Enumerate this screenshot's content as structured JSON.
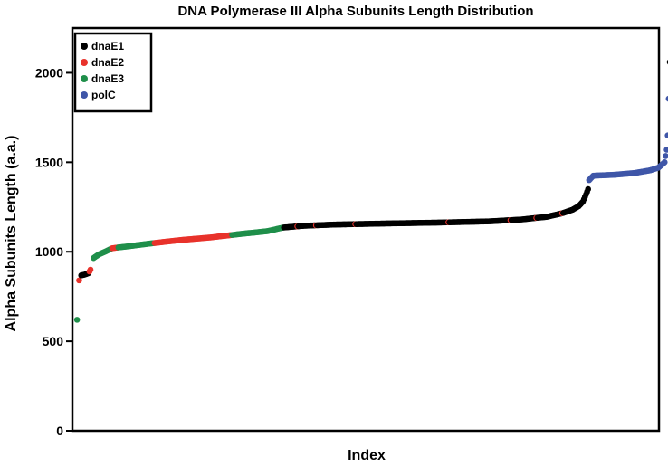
{
  "chart_data": {
    "type": "scatter",
    "title": "DNA Polymerase III Alpha Subunits Length Distribution",
    "xlabel": "Index",
    "ylabel": "Alpha Subunits Length (a.a.)",
    "ylim": [
      0,
      2250
    ],
    "yticks": [
      0,
      500,
      1000,
      1500,
      2000
    ],
    "xlim": [
      0,
      560
    ],
    "grid": false,
    "legend_position": "top-left",
    "colors": {
      "dnaE1": "#000000",
      "dnaE2": "#e8322b",
      "dnaE3": "#1f8f4a",
      "polC": "#3f56a8"
    },
    "legend": [
      "dnaE1",
      "dnaE2",
      "dnaE3",
      "polC"
    ],
    "curve": {
      "description_points": [
        [
          1,
          620
        ],
        [
          3,
          840
        ],
        [
          5,
          868
        ],
        [
          8,
          872
        ],
        [
          12,
          880
        ],
        [
          14,
          900
        ],
        [
          17,
          965
        ],
        [
          22,
          985
        ],
        [
          28,
          1000
        ],
        [
          35,
          1020
        ],
        [
          50,
          1030
        ],
        [
          70,
          1045
        ],
        [
          100,
          1065
        ],
        [
          130,
          1080
        ],
        [
          160,
          1100
        ],
        [
          185,
          1115
        ],
        [
          200,
          1135
        ],
        [
          220,
          1145
        ],
        [
          250,
          1152
        ],
        [
          300,
          1158
        ],
        [
          350,
          1163
        ],
        [
          400,
          1170
        ],
        [
          430,
          1180
        ],
        [
          455,
          1195
        ],
        [
          470,
          1215
        ],
        [
          480,
          1235
        ],
        [
          486,
          1255
        ],
        [
          490,
          1280
        ],
        [
          493,
          1320
        ],
        [
          495,
          1350
        ],
        [
          496,
          1400
        ],
        [
          500,
          1425
        ],
        [
          520,
          1430
        ],
        [
          540,
          1440
        ],
        [
          555,
          1455
        ],
        [
          563,
          1470
        ],
        [
          567,
          1490
        ],
        [
          569,
          1500
        ],
        [
          571,
          1570
        ],
        [
          572,
          1650
        ],
        [
          574,
          2060
        ]
      ]
    },
    "series_segments": [
      {
        "name": "dnaE3",
        "from": 1,
        "to": 1
      },
      {
        "name": "dnaE2",
        "from": 3,
        "to": 3
      },
      {
        "name": "dnaE1",
        "from": 5,
        "to": 12
      },
      {
        "name": "dnaE2",
        "from": 13,
        "to": 14
      },
      {
        "name": "dnaE3",
        "from": 17,
        "to": 34
      },
      {
        "name": "dnaE2",
        "from": 35,
        "to": 40
      },
      {
        "name": "dnaE3",
        "from": 41,
        "to": 75
      },
      {
        "name": "dnaE2",
        "from": 76,
        "to": 150
      },
      {
        "name": "dnaE3",
        "from": 151,
        "to": 200
      },
      {
        "name": "dnaE1",
        "from": 201,
        "to": 495
      },
      {
        "name": "polC",
        "from": 496,
        "to": 573
      },
      {
        "name": "dnaE1",
        "from": 574,
        "to": 574
      }
    ],
    "scattered_dnaE2_indices": [
      214,
      232,
      270,
      360,
      420,
      445,
      470
    ]
  }
}
